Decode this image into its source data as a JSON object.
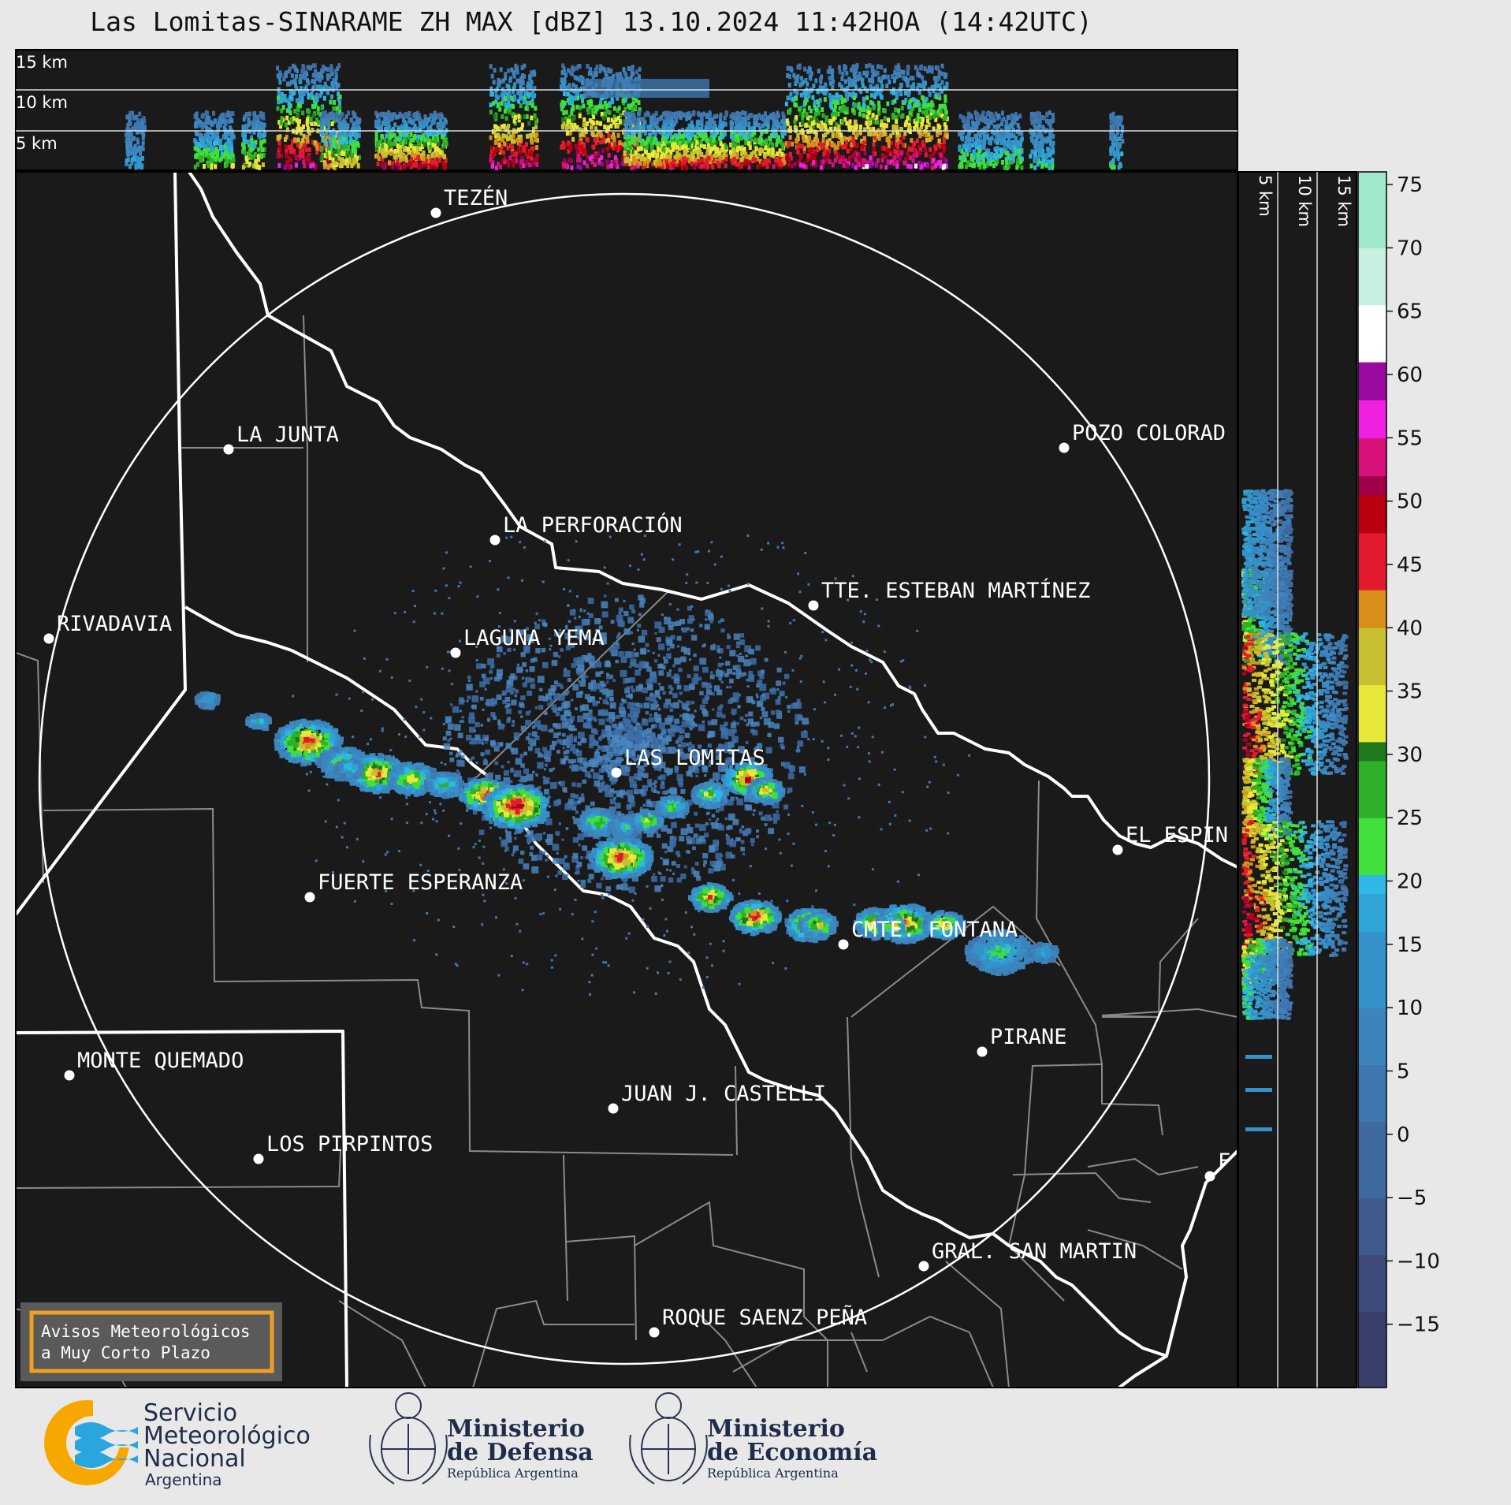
{
  "title": "Las Lomitas-SINARAME ZH MAX [dBZ] 13.10.2024 11:42HOA (14:42UTC)",
  "top_panel_altitudes": [
    "15 km",
    "10 km",
    "5 km"
  ],
  "side_panel_altitudes": [
    "5 km",
    "10 km",
    "15 km"
  ],
  "colorbar": {
    "ticks": [
      "75",
      "70",
      "65",
      "60",
      "55",
      "50",
      "45",
      "40",
      "35",
      "30",
      "25",
      "20",
      "15",
      "10",
      "5",
      "0",
      "−5",
      "−10",
      "−15"
    ],
    "range_dbz": [
      -20,
      76
    ]
  },
  "cities": [
    {
      "name": "TEZÉN"
    },
    {
      "name": "LA JUNTA"
    },
    {
      "name": "POZO COLORAD"
    },
    {
      "name": "LA PERFORACIÓN"
    },
    {
      "name": "TTE. ESTEBAN MARTÍNEZ"
    },
    {
      "name": "RIVADAVIA"
    },
    {
      "name": "LAGUNA YEMA"
    },
    {
      "name": "LAS LOMITAS"
    },
    {
      "name": "EL ESPIN"
    },
    {
      "name": "FUERTE ESPERANZA"
    },
    {
      "name": "CMTE. FONTANA"
    },
    {
      "name": "PIRANE"
    },
    {
      "name": "MONTE QUEMADO"
    },
    {
      "name": "JUAN J. CASTELLI"
    },
    {
      "name": "LOS PIRPINTOS"
    },
    {
      "name": "F"
    },
    {
      "name": "GRAL. SAN MARTIN"
    },
    {
      "name": "ROQUE SAENZ PEÑA"
    }
  ],
  "warning_box": {
    "line1": "Avisos Meteorológicos",
    "line2": "a Muy Corto Plazo"
  },
  "logos": {
    "smn": {
      "line1": "Servicio",
      "line2": "Meteorológico",
      "line3": "Nacional",
      "line4": "Argentina"
    },
    "defensa": {
      "line1": "Ministerio",
      "line2": "de Defensa",
      "line3": "República Argentina"
    },
    "economia": {
      "line1": "Ministerio",
      "line2": "de Economía",
      "line3": "República Argentina"
    }
  },
  "colors": {
    "background": "#1a1a1a",
    "page": "#e8e8e8",
    "border": "#ffffff",
    "warning": "#f0a020"
  }
}
